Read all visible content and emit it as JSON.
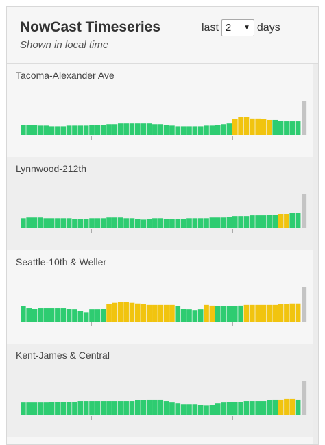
{
  "header": {
    "title": "NowCast Timeseries",
    "subtitle": "Shown in local time",
    "days_prefix": "last",
    "days_value": "2",
    "days_suffix": "days"
  },
  "colors": {
    "good": "#2ecc71",
    "moderate": "#f1c40f",
    "latest": "#c4c4c4"
  },
  "chart_data": [
    {
      "type": "bar",
      "site": "Tacoma-Alexander Ave",
      "values": [
        14,
        14,
        14,
        13,
        13,
        12,
        12,
        12,
        13,
        13,
        13,
        13,
        14,
        14,
        14,
        15,
        15,
        16,
        16,
        16,
        16,
        16,
        16,
        15,
        15,
        14,
        13,
        12,
        12,
        12,
        12,
        12,
        13,
        13,
        14,
        15,
        16,
        22,
        25,
        25,
        23,
        23,
        22,
        21,
        21,
        20,
        19,
        19,
        19
      ],
      "categories": [
        "Good",
        "Good",
        "Good",
        "Good",
        "Good",
        "Good",
        "Good",
        "Good",
        "Good",
        "Good",
        "Good",
        "Good",
        "Good",
        "Good",
        "Good",
        "Good",
        "Good",
        "Good",
        "Good",
        "Good",
        "Good",
        "Good",
        "Good",
        "Good",
        "Good",
        "Good",
        "Good",
        "Good",
        "Good",
        "Good",
        "Good",
        "Good",
        "Good",
        "Good",
        "Good",
        "Good",
        "Good",
        "Moderate",
        "Moderate",
        "Moderate",
        "Moderate",
        "Moderate",
        "Moderate",
        "Moderate",
        "Good",
        "Good",
        "Good",
        "Good",
        "Good"
      ]
    },
    {
      "type": "bar",
      "site": "Lynnwood-212th",
      "values": [
        14,
        15,
        15,
        15,
        14,
        14,
        14,
        14,
        14,
        13,
        13,
        13,
        14,
        14,
        14,
        15,
        15,
        15,
        14,
        14,
        13,
        12,
        13,
        14,
        14,
        13,
        13,
        13,
        13,
        14,
        14,
        14,
        14,
        15,
        15,
        15,
        16,
        17,
        17,
        17,
        18,
        18,
        18,
        19,
        19,
        20,
        20,
        21,
        21
      ],
      "categories": [
        "Good",
        "Good",
        "Good",
        "Good",
        "Good",
        "Good",
        "Good",
        "Good",
        "Good",
        "Good",
        "Good",
        "Good",
        "Good",
        "Good",
        "Good",
        "Good",
        "Good",
        "Good",
        "Good",
        "Good",
        "Good",
        "Good",
        "Good",
        "Good",
        "Good",
        "Good",
        "Good",
        "Good",
        "Good",
        "Good",
        "Good",
        "Good",
        "Good",
        "Good",
        "Good",
        "Good",
        "Good",
        "Good",
        "Good",
        "Good",
        "Good",
        "Good",
        "Good",
        "Good",
        "Good",
        "Moderate",
        "Moderate",
        "Good",
        "Good"
      ]
    },
    {
      "type": "bar",
      "site": "Seattle-10th & Weller",
      "values": [
        21,
        19,
        18,
        19,
        19,
        19,
        19,
        19,
        18,
        17,
        15,
        13,
        17,
        17,
        18,
        24,
        26,
        27,
        27,
        26,
        25,
        24,
        23,
        23,
        23,
        23,
        23,
        21,
        18,
        17,
        16,
        17,
        23,
        22,
        21,
        21,
        21,
        21,
        22,
        23,
        23,
        23,
        23,
        23,
        23,
        24,
        24,
        25,
        25
      ],
      "categories": [
        "Good",
        "Good",
        "Good",
        "Good",
        "Good",
        "Good",
        "Good",
        "Good",
        "Good",
        "Good",
        "Good",
        "Good",
        "Good",
        "Good",
        "Good",
        "Moderate",
        "Moderate",
        "Moderate",
        "Moderate",
        "Moderate",
        "Moderate",
        "Moderate",
        "Moderate",
        "Moderate",
        "Moderate",
        "Moderate",
        "Moderate",
        "Good",
        "Good",
        "Good",
        "Good",
        "Good",
        "Moderate",
        "Moderate",
        "Good",
        "Good",
        "Good",
        "Good",
        "Good",
        "Moderate",
        "Moderate",
        "Moderate",
        "Moderate",
        "Moderate",
        "Moderate",
        "Moderate",
        "Moderate",
        "Moderate",
        "Moderate"
      ]
    },
    {
      "type": "bar",
      "site": "Kent-James & Central",
      "values": [
        17,
        17,
        17,
        17,
        17,
        18,
        18,
        18,
        18,
        18,
        19,
        19,
        19,
        19,
        19,
        19,
        19,
        19,
        19,
        19,
        20,
        20,
        21,
        21,
        21,
        19,
        17,
        16,
        15,
        15,
        15,
        14,
        13,
        14,
        16,
        17,
        18,
        18,
        18,
        19,
        19,
        19,
        19,
        20,
        21,
        21,
        22,
        22,
        21
      ],
      "categories": [
        "Good",
        "Good",
        "Good",
        "Good",
        "Good",
        "Good",
        "Good",
        "Good",
        "Good",
        "Good",
        "Good",
        "Good",
        "Good",
        "Good",
        "Good",
        "Good",
        "Good",
        "Good",
        "Good",
        "Good",
        "Good",
        "Good",
        "Good",
        "Good",
        "Good",
        "Good",
        "Good",
        "Good",
        "Good",
        "Good",
        "Good",
        "Good",
        "Good",
        "Good",
        "Good",
        "Good",
        "Good",
        "Good",
        "Good",
        "Good",
        "Good",
        "Good",
        "Good",
        "Good",
        "Good",
        "Moderate",
        "Moderate",
        "Moderate",
        "Good"
      ]
    }
  ]
}
